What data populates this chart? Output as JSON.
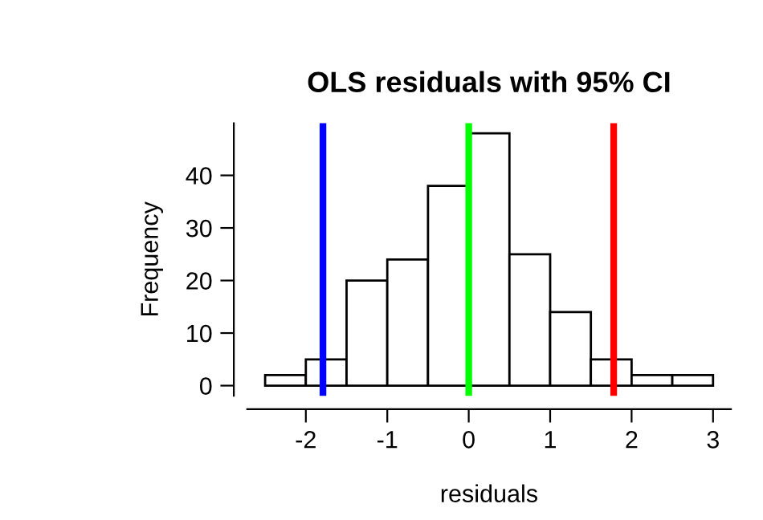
{
  "chart_data": {
    "type": "histogram",
    "title": "OLS residuals with 95% CI",
    "xlabel": "residuals",
    "ylabel": "Frequency",
    "bins": [
      -2.5,
      -2,
      -1.5,
      -1,
      -0.5,
      0,
      0.5,
      1,
      1.5,
      2,
      2.5,
      3
    ],
    "values": [
      2,
      5,
      20,
      24,
      38,
      48,
      25,
      14,
      5,
      2,
      2
    ],
    "color": "#ffffff",
    "xlim": [
      -2.72,
      3.22
    ],
    "ylim": [
      -1.92,
      49.92
    ],
    "xticks": [
      -2,
      -1,
      0,
      1,
      2,
      3
    ],
    "yticks": [
      0,
      10,
      20,
      30,
      40
    ],
    "ref_lines": [
      {
        "axis": "x",
        "value": -1.79,
        "color": "#0000ff"
      },
      {
        "axis": "x",
        "value": 0,
        "color": "#00ff00"
      },
      {
        "axis": "x",
        "value": 1.78,
        "color": "#ff0000"
      }
    ],
    "grid": false,
    "legend": false
  }
}
